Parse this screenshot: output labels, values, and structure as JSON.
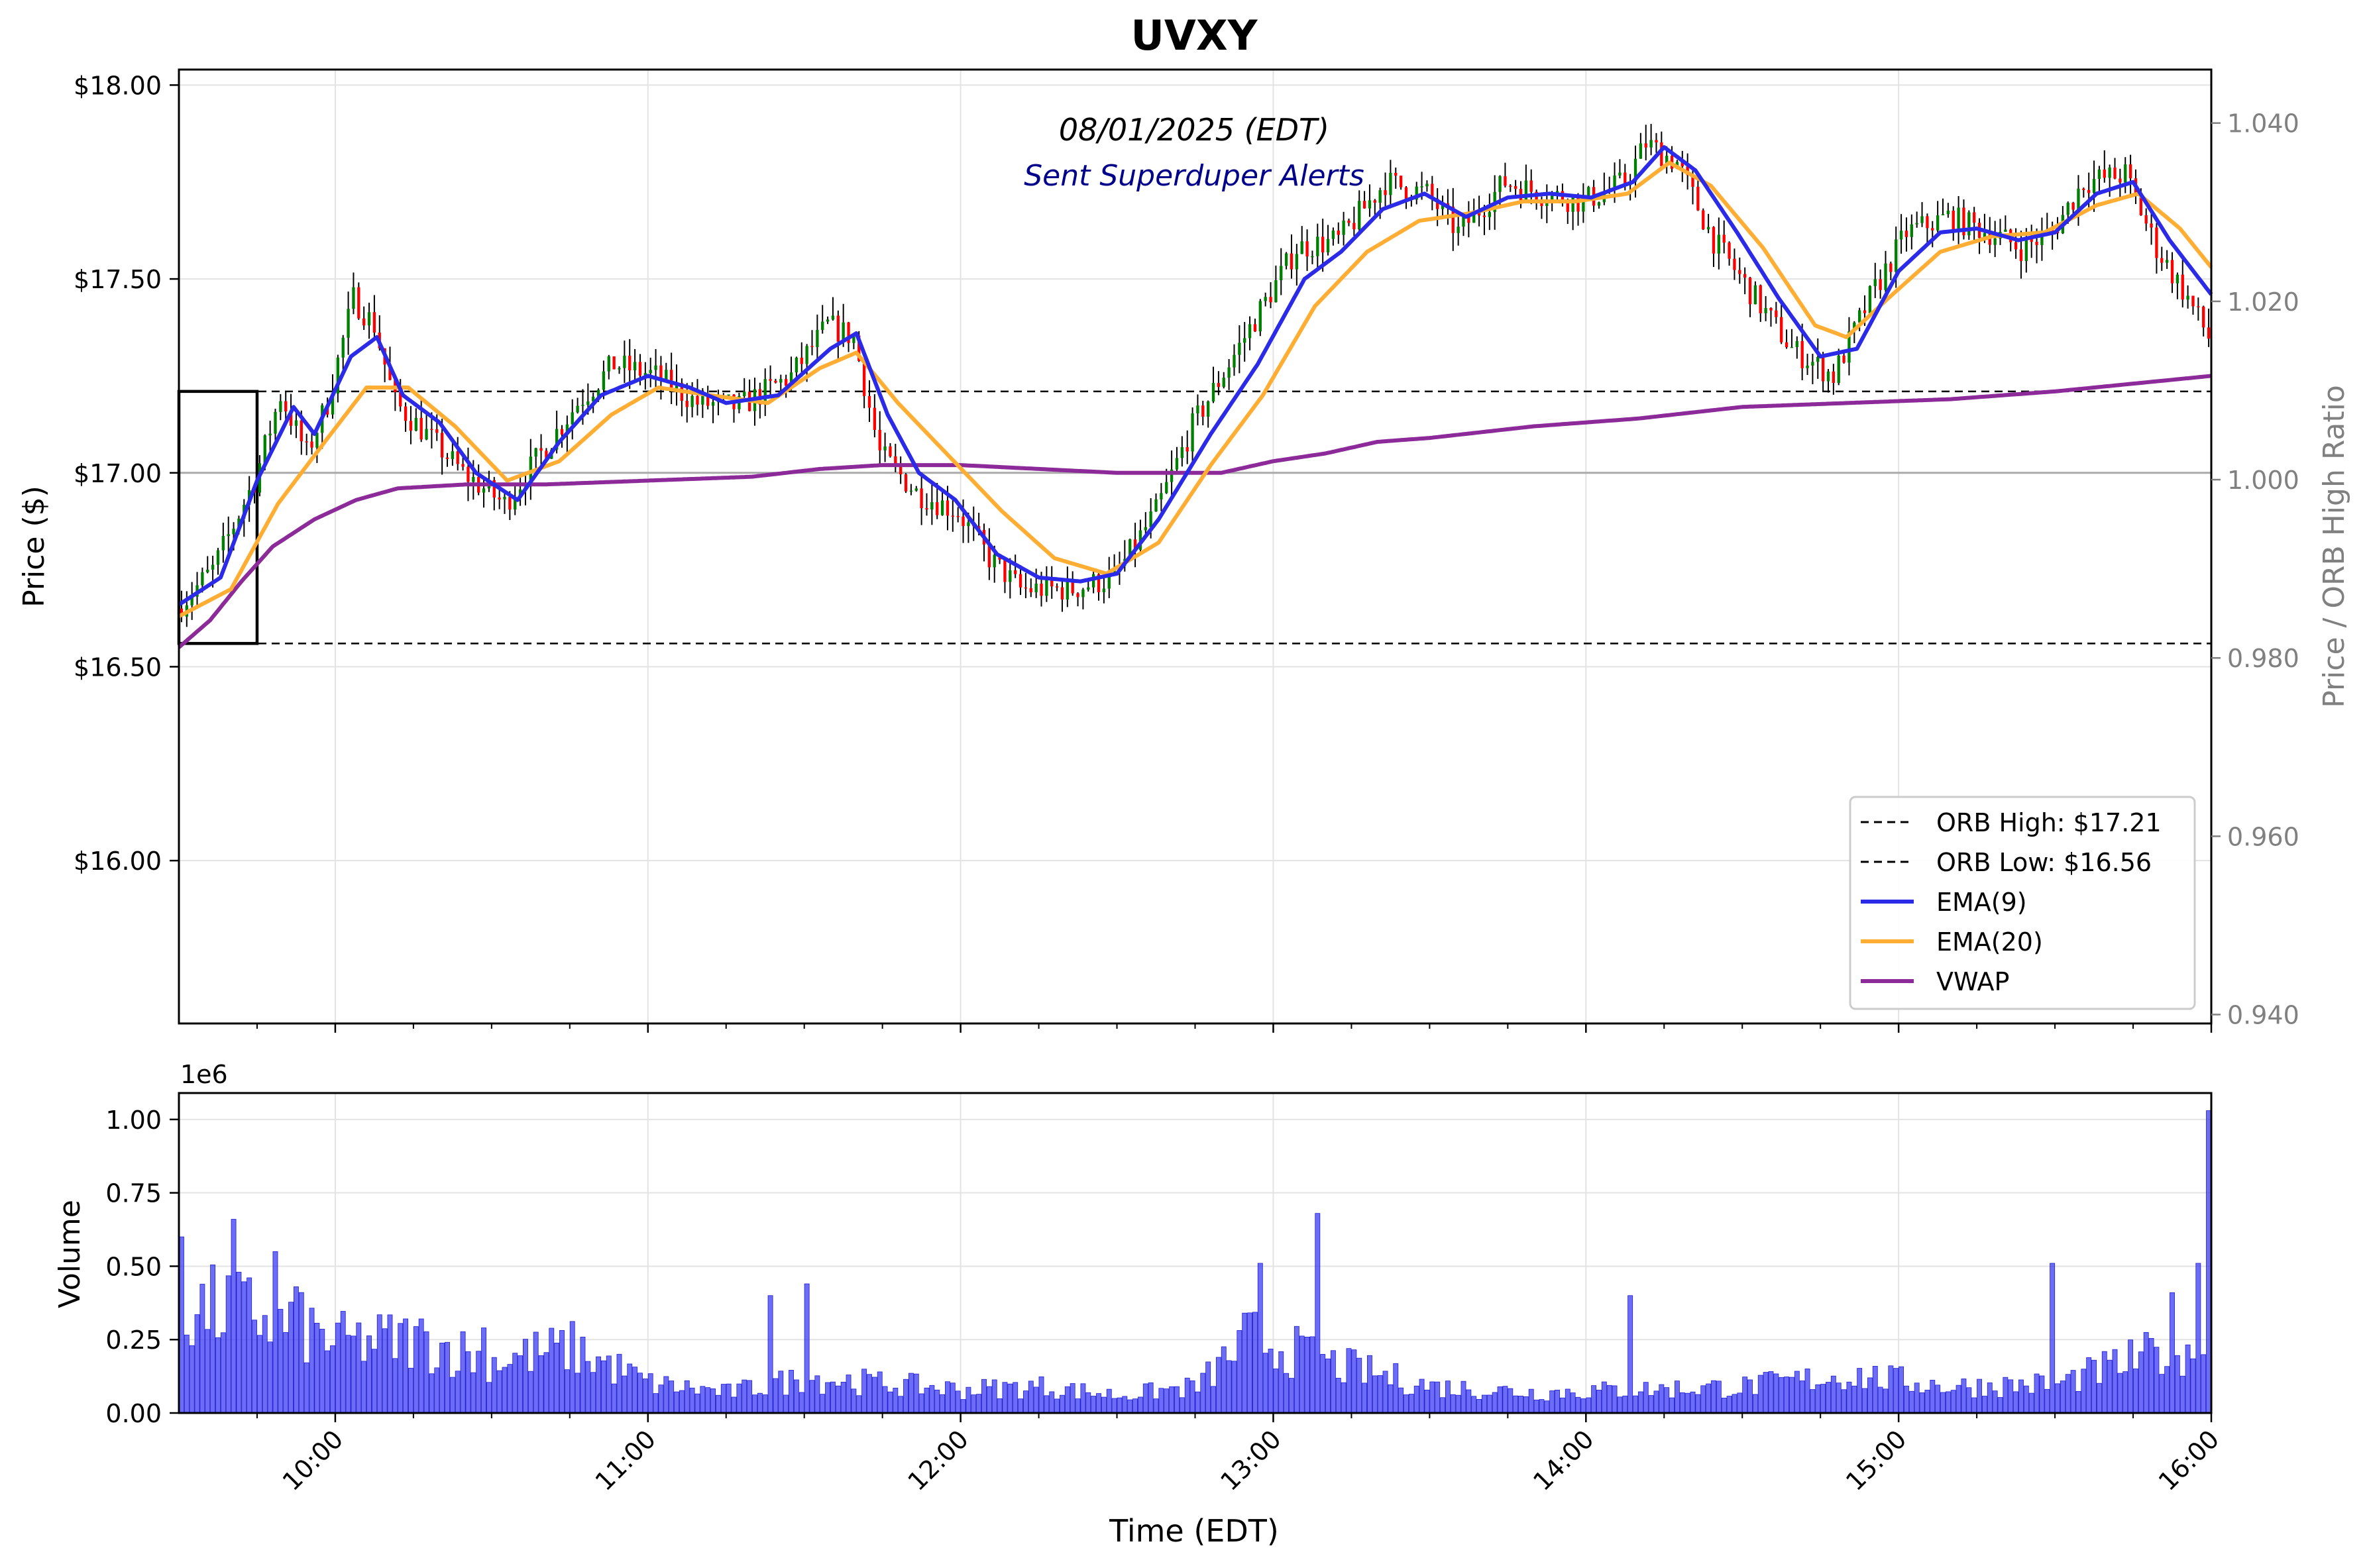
{
  "chart_data": [
    {
      "type": "candlestick",
      "title": "UVXY",
      "subtitle": "08/01/2025 (EDT)",
      "annotation": "Sent Superduper Alerts",
      "xlabel": "Time (EDT)",
      "ylabel": "Price ($)",
      "ylabel_right": "Price / ORB High Ratio",
      "x_range": [
        "09:30",
        "16:00"
      ],
      "x_ticks": [
        "10:00",
        "11:00",
        "12:00",
        "13:00",
        "14:00",
        "15:00",
        "16:00"
      ],
      "ylim": [
        15.58,
        18.04
      ],
      "y_ticks": [
        16.0,
        16.5,
        17.0,
        17.5,
        18.0
      ],
      "y_tick_labels": [
        "$16.00",
        "$16.50",
        "$17.00",
        "$17.50",
        "$18.00"
      ],
      "ylim_right": [
        0.939,
        1.046
      ],
      "y_ticks_right": [
        0.94,
        0.96,
        0.98,
        1.0,
        1.02,
        1.04
      ],
      "y_tick_labels_right": [
        "0.940",
        "0.960",
        "0.980",
        "1.000",
        "1.020",
        "1.040"
      ],
      "grid": true,
      "legend_position": "bottom-right",
      "orb": {
        "high": 17.21,
        "low": 16.56,
        "start": "09:30",
        "end": "09:45"
      },
      "colors": {
        "up": "#008000",
        "down": "#ff0000",
        "ema9": "#2a2ae8",
        "ema20": "#ffad33",
        "vwap": "#8b2a98",
        "orb_box": "#000000",
        "reference": "#aaaaaa"
      },
      "legend": [
        {
          "label": "ORB High: $17.21",
          "style": "dashed",
          "color": "#000000"
        },
        {
          "label": "ORB Low: $16.56",
          "style": "dashed",
          "color": "#000000"
        },
        {
          "label": "EMA(9)",
          "style": "solid",
          "color": "#2a2ae8"
        },
        {
          "label": "EMA(20)",
          "style": "solid",
          "color": "#ffad33"
        },
        {
          "label": "VWAP",
          "style": "solid",
          "color": "#8b2a98"
        }
      ],
      "price_path": [
        [
          "09:30",
          16.65
        ],
        [
          "09:37",
          16.75
        ],
        [
          "09:45",
          16.98
        ],
        [
          "09:50",
          17.2
        ],
        [
          "09:55",
          17.05
        ],
        [
          "09:59",
          17.18
        ],
        [
          "10:04",
          17.45
        ],
        [
          "10:08",
          17.38
        ],
        [
          "10:12",
          17.18
        ],
        [
          "10:18",
          17.1
        ],
        [
          "10:25",
          17.0
        ],
        [
          "10:33",
          16.92
        ],
        [
          "10:40",
          17.05
        ],
        [
          "10:47",
          17.18
        ],
        [
          "10:54",
          17.28
        ],
        [
          "11:02",
          17.25
        ],
        [
          "11:10",
          17.18
        ],
        [
          "11:18",
          17.17
        ],
        [
          "11:28",
          17.25
        ],
        [
          "11:35",
          17.38
        ],
        [
          "11:40",
          17.35
        ],
        [
          "11:45",
          17.05
        ],
        [
          "11:52",
          16.95
        ],
        [
          "12:00",
          16.9
        ],
        [
          "12:06",
          16.78
        ],
        [
          "12:12",
          16.7
        ],
        [
          "12:22",
          16.7
        ],
        [
          "12:30",
          16.73
        ],
        [
          "12:38",
          16.9
        ],
        [
          "12:45",
          17.12
        ],
        [
          "12:55",
          17.35
        ],
        [
          "13:05",
          17.58
        ],
        [
          "13:13",
          17.6
        ],
        [
          "13:22",
          17.75
        ],
        [
          "13:30",
          17.72
        ],
        [
          "13:36",
          17.62
        ],
        [
          "13:45",
          17.75
        ],
        [
          "13:52",
          17.72
        ],
        [
          "14:00",
          17.7
        ],
        [
          "14:08",
          17.75
        ],
        [
          "14:12",
          17.85
        ],
        [
          "14:18",
          17.8
        ],
        [
          "14:25",
          17.6
        ],
        [
          "14:33",
          17.45
        ],
        [
          "14:40",
          17.32
        ],
        [
          "14:48",
          17.25
        ],
        [
          "14:55",
          17.45
        ],
        [
          "15:02",
          17.62
        ],
        [
          "15:10",
          17.66
        ],
        [
          "15:18",
          17.62
        ],
        [
          "15:24",
          17.58
        ],
        [
          "15:30",
          17.62
        ],
        [
          "15:36",
          17.75
        ],
        [
          "15:44",
          17.77
        ],
        [
          "15:50",
          17.58
        ],
        [
          "15:56",
          17.45
        ],
        [
          "16:00",
          17.35
        ]
      ],
      "ema9": [
        [
          "09:30",
          16.66
        ],
        [
          "09:38",
          16.73
        ],
        [
          "09:45",
          16.98
        ],
        [
          "09:52",
          17.17
        ],
        [
          "09:56",
          17.1
        ],
        [
          "10:03",
          17.3
        ],
        [
          "10:08",
          17.35
        ],
        [
          "10:13",
          17.2
        ],
        [
          "10:20",
          17.13
        ],
        [
          "10:27",
          17.0
        ],
        [
          "10:35",
          16.93
        ],
        [
          "10:43",
          17.08
        ],
        [
          "10:51",
          17.2
        ],
        [
          "11:00",
          17.25
        ],
        [
          "11:08",
          17.22
        ],
        [
          "11:15",
          17.18
        ],
        [
          "11:25",
          17.2
        ],
        [
          "11:35",
          17.32
        ],
        [
          "11:40",
          17.36
        ],
        [
          "11:46",
          17.15
        ],
        [
          "11:52",
          17.0
        ],
        [
          "11:59",
          16.93
        ],
        [
          "12:07",
          16.79
        ],
        [
          "12:15",
          16.73
        ],
        [
          "12:23",
          16.72
        ],
        [
          "12:30",
          16.74
        ],
        [
          "12:38",
          16.88
        ],
        [
          "12:48",
          17.1
        ],
        [
          "12:57",
          17.28
        ],
        [
          "13:06",
          17.5
        ],
        [
          "13:13",
          17.57
        ],
        [
          "13:21",
          17.68
        ],
        [
          "13:29",
          17.72
        ],
        [
          "13:37",
          17.66
        ],
        [
          "13:45",
          17.71
        ],
        [
          "13:53",
          17.72
        ],
        [
          "14:01",
          17.71
        ],
        [
          "14:09",
          17.75
        ],
        [
          "14:15",
          17.84
        ],
        [
          "14:21",
          17.78
        ],
        [
          "14:29",
          17.62
        ],
        [
          "14:37",
          17.45
        ],
        [
          "14:45",
          17.3
        ],
        [
          "14:52",
          17.32
        ],
        [
          "15:00",
          17.52
        ],
        [
          "15:08",
          17.62
        ],
        [
          "15:15",
          17.63
        ],
        [
          "15:23",
          17.6
        ],
        [
          "15:30",
          17.62
        ],
        [
          "15:38",
          17.72
        ],
        [
          "15:45",
          17.75
        ],
        [
          "15:52",
          17.6
        ],
        [
          "16:00",
          17.46
        ]
      ],
      "ema20": [
        [
          "09:30",
          16.63
        ],
        [
          "09:40",
          16.7
        ],
        [
          "09:49",
          16.92
        ],
        [
          "09:58",
          17.08
        ],
        [
          "10:06",
          17.22
        ],
        [
          "10:14",
          17.22
        ],
        [
          "10:23",
          17.12
        ],
        [
          "10:33",
          16.98
        ],
        [
          "10:43",
          17.03
        ],
        [
          "10:53",
          17.15
        ],
        [
          "11:02",
          17.22
        ],
        [
          "11:12",
          17.2
        ],
        [
          "11:23",
          17.18
        ],
        [
          "11:33",
          17.27
        ],
        [
          "11:40",
          17.31
        ],
        [
          "11:48",
          17.18
        ],
        [
          "11:58",
          17.04
        ],
        [
          "12:08",
          16.9
        ],
        [
          "12:18",
          16.78
        ],
        [
          "12:28",
          16.74
        ],
        [
          "12:38",
          16.82
        ],
        [
          "12:48",
          17.02
        ],
        [
          "12:58",
          17.2
        ],
        [
          "13:08",
          17.43
        ],
        [
          "13:18",
          17.57
        ],
        [
          "13:28",
          17.65
        ],
        [
          "13:38",
          17.67
        ],
        [
          "13:48",
          17.7
        ],
        [
          "13:58",
          17.7
        ],
        [
          "14:08",
          17.72
        ],
        [
          "14:16",
          17.8
        ],
        [
          "14:24",
          17.74
        ],
        [
          "14:34",
          17.58
        ],
        [
          "14:44",
          17.38
        ],
        [
          "14:50",
          17.35
        ],
        [
          "14:58",
          17.45
        ],
        [
          "15:08",
          17.57
        ],
        [
          "15:18",
          17.61
        ],
        [
          "15:28",
          17.62
        ],
        [
          "15:38",
          17.69
        ],
        [
          "15:46",
          17.72
        ],
        [
          "15:54",
          17.63
        ],
        [
          "16:00",
          17.53
        ]
      ],
      "vwap": [
        [
          "09:30",
          16.55
        ],
        [
          "09:36",
          16.62
        ],
        [
          "09:42",
          16.72
        ],
        [
          "09:48",
          16.81
        ],
        [
          "09:56",
          16.88
        ],
        [
          "10:04",
          16.93
        ],
        [
          "10:12",
          16.96
        ],
        [
          "10:25",
          16.97
        ],
        [
          "10:40",
          16.97
        ],
        [
          "11:00",
          16.98
        ],
        [
          "11:20",
          16.99
        ],
        [
          "11:33",
          17.01
        ],
        [
          "11:45",
          17.02
        ],
        [
          "12:00",
          17.02
        ],
        [
          "12:15",
          17.01
        ],
        [
          "12:30",
          17.0
        ],
        [
          "12:50",
          17.0
        ],
        [
          "13:00",
          17.03
        ],
        [
          "13:10",
          17.05
        ],
        [
          "13:20",
          17.08
        ],
        [
          "13:30",
          17.09
        ],
        [
          "13:50",
          17.12
        ],
        [
          "14:10",
          17.14
        ],
        [
          "14:30",
          17.17
        ],
        [
          "14:50",
          17.18
        ],
        [
          "15:10",
          17.19
        ],
        [
          "15:30",
          17.21
        ],
        [
          "15:45",
          17.23
        ],
        [
          "16:00",
          17.25
        ]
      ]
    },
    {
      "type": "bar",
      "ylabel": "Volume",
      "xlabel": "Time (EDT)",
      "y_multiplier_label": "1e6",
      "ylim": [
        0,
        1.09
      ],
      "y_ticks": [
        0.0,
        0.25,
        0.5,
        0.75,
        1.0
      ],
      "y_tick_labels": [
        "0.00",
        "0.25",
        "0.50",
        "0.75",
        "1.00"
      ],
      "x_range": [
        "09:30",
        "16:00"
      ],
      "x_ticks": [
        "10:00",
        "11:00",
        "12:00",
        "13:00",
        "14:00",
        "15:00",
        "16:00"
      ],
      "color": "#3b3bf4",
      "volume_profile_1e6": [
        [
          "09:30",
          0.36
        ],
        [
          "09:45",
          0.34
        ],
        [
          "10:00",
          0.24
        ],
        [
          "10:15",
          0.25
        ],
        [
          "10:30",
          0.18
        ],
        [
          "10:45",
          0.22
        ],
        [
          "11:00",
          0.1
        ],
        [
          "11:15",
          0.07
        ],
        [
          "11:30",
          0.12
        ],
        [
          "11:45",
          0.1
        ],
        [
          "12:00",
          0.08
        ],
        [
          "12:15",
          0.09
        ],
        [
          "12:30",
          0.06
        ],
        [
          "12:45",
          0.09
        ],
        [
          "12:55",
          0.26
        ],
        [
          "13:10",
          0.17
        ],
        [
          "13:30",
          0.09
        ],
        [
          "13:50",
          0.07
        ],
        [
          "14:10",
          0.08
        ],
        [
          "14:30",
          0.09
        ],
        [
          "14:50",
          0.13
        ],
        [
          "15:10",
          0.09
        ],
        [
          "15:30",
          0.1
        ],
        [
          "15:45",
          0.18
        ],
        [
          "15:58",
          0.25
        ]
      ],
      "volume_spikes_1e6": [
        [
          "09:30",
          0.6
        ],
        [
          "09:40",
          0.66
        ],
        [
          "09:48",
          0.55
        ],
        [
          "09:52",
          0.43
        ],
        [
          "10:28",
          0.29
        ],
        [
          "11:23",
          0.4
        ],
        [
          "11:30",
          0.44
        ],
        [
          "12:57",
          0.51
        ],
        [
          "13:08",
          0.68
        ],
        [
          "14:08",
          0.4
        ],
        [
          "15:29",
          0.51
        ],
        [
          "15:52",
          0.41
        ],
        [
          "15:57",
          0.51
        ],
        [
          "15:59",
          1.03
        ]
      ]
    }
  ]
}
